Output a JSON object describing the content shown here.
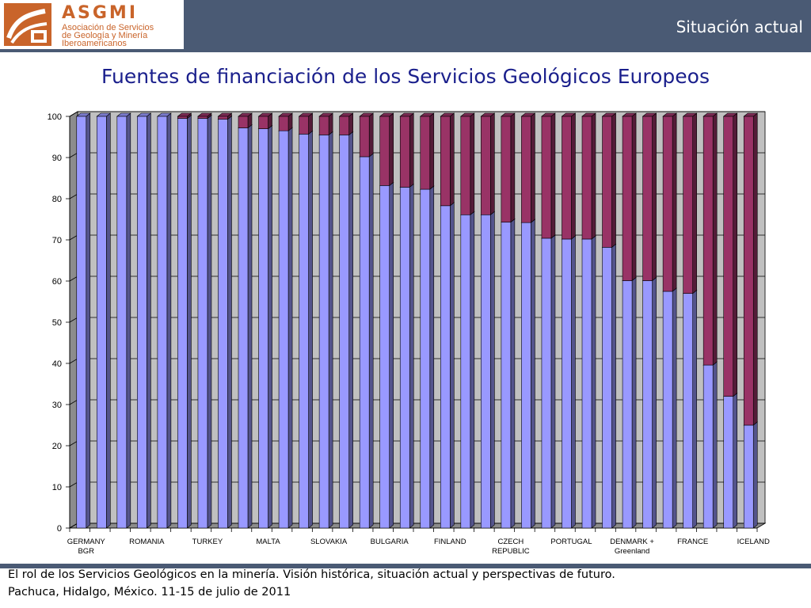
{
  "header": {
    "logo_text": "ASGMI",
    "logo_lines": [
      "Asociación de Servicios",
      "de Geología y Minería",
      "Iberoamericanos"
    ],
    "section_title": "Situación actual",
    "colors": {
      "bar": "#4a5a74",
      "logo": "#c9642a"
    }
  },
  "chart_title": "Fuentes de financiación de los Servicios Geológicos Europeos",
  "chart_data": {
    "type": "bar",
    "stacked": true,
    "three_d": true,
    "title": "Fuentes de financiación de los Servicios Geológicos Europeos",
    "xlabel": "",
    "ylabel": "",
    "ylim": [
      0,
      100
    ],
    "yticks": [
      0,
      10,
      20,
      30,
      40,
      50,
      60,
      70,
      80,
      90,
      100
    ],
    "grid": true,
    "legend": "none",
    "category_labels": [
      {
        "index": 0,
        "lines": [
          "GERMANY",
          "BGR"
        ]
      },
      {
        "index": 3,
        "lines": [
          "ROMANIA"
        ]
      },
      {
        "index": 6,
        "lines": [
          "TURKEY"
        ]
      },
      {
        "index": 9,
        "lines": [
          "MALTA"
        ]
      },
      {
        "index": 12,
        "lines": [
          "SLOVAKIA"
        ]
      },
      {
        "index": 15,
        "lines": [
          "BULGARIA"
        ]
      },
      {
        "index": 18,
        "lines": [
          "FINLAND"
        ]
      },
      {
        "index": 21,
        "lines": [
          "CZECH",
          "REPUBLIC"
        ]
      },
      {
        "index": 24,
        "lines": [
          "PORTUGAL"
        ]
      },
      {
        "index": 27,
        "lines": [
          "DENMARK +",
          "Greenland"
        ]
      },
      {
        "index": 30,
        "lines": [
          "FRANCE"
        ]
      },
      {
        "index": 33,
        "lines": [
          "ICELAND"
        ]
      }
    ],
    "series": [
      {
        "color": "#9999ff",
        "values": [
          100,
          100,
          100,
          100,
          100,
          99.5,
          99.5,
          99.3,
          97.2,
          97,
          96.5,
          95.7,
          95.5,
          95.5,
          90.2,
          83.2,
          82.8,
          82.3,
          78.3,
          76.1,
          76.1,
          74.3,
          74.2,
          70.4,
          70.2,
          70.2,
          68.2,
          60.1,
          60.1,
          57.5,
          57,
          39.6,
          32,
          25
        ]
      },
      {
        "color": "#993366",
        "values": [
          0,
          0,
          0,
          0,
          0,
          0.5,
          0.5,
          0.7,
          2.8,
          3,
          3.5,
          4.3,
          4.5,
          4.5,
          9.8,
          16.8,
          17.2,
          17.7,
          21.7,
          23.9,
          23.9,
          25.7,
          25.8,
          29.6,
          29.8,
          29.8,
          31.8,
          39.9,
          39.9,
          42.5,
          43,
          60.4,
          68,
          75
        ]
      }
    ]
  },
  "footer": {
    "line1": "El rol de los Servicios Geológicos en la minería. Visión histórica, situación actual y perspectivas de futuro.",
    "line2": "Pachuca, Hidalgo, México. 11-15 de julio de 2011"
  }
}
